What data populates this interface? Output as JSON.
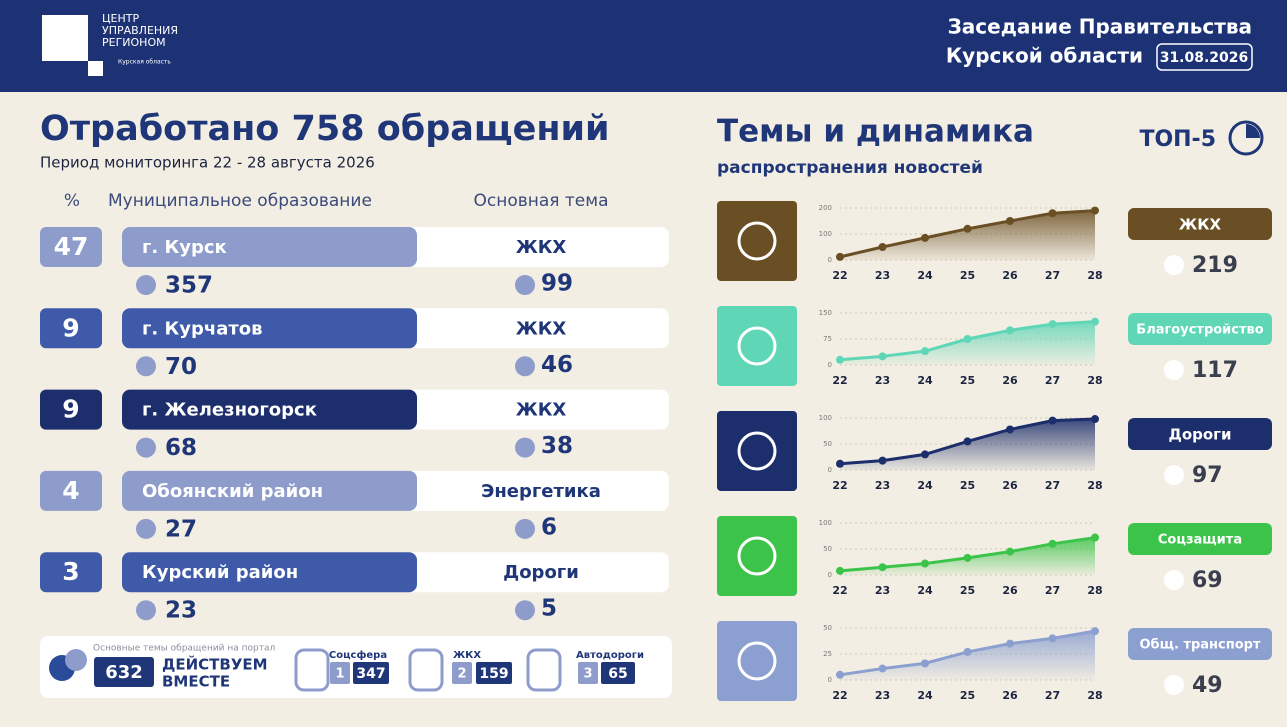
{
  "header": {
    "org": [
      "ЦЕНТР",
      "УПРАВЛЕНИЯ",
      "РЕГИОНОМ"
    ],
    "region": "Курская область",
    "title_lines": [
      "Заседание Правительства",
      "Курской области"
    ],
    "date": "31.08.2026"
  },
  "summary": {
    "title": "Отработано 758 обращений",
    "period": "Период мониторинга 22 - 28 августа 2026"
  },
  "table": {
    "columns": [
      "%",
      "Муниципальное образование",
      "Основная тема"
    ],
    "rows": [
      {
        "percent": 47,
        "name": "г. Курск",
        "count": 357,
        "topic": "ЖКХ",
        "topic_count": 99,
        "color": "#8e9ccc"
      },
      {
        "percent": 9,
        "name": "г. Курчатов",
        "count": 70,
        "topic": "ЖКХ",
        "topic_count": 46,
        "color": "#3f5aa8"
      },
      {
        "percent": 9,
        "name": "г. Железногорск",
        "count": 68,
        "topic": "ЖКХ",
        "topic_count": 38,
        "color": "#1c2e6b"
      },
      {
        "percent": 4,
        "name": "Обоянский район",
        "count": 27,
        "topic": "Энергетика",
        "topic_count": 6,
        "color": "#8e9ccc"
      },
      {
        "percent": 3,
        "name": "Курский район",
        "count": 23,
        "topic": "Дороги",
        "topic_count": 5,
        "color": "#3f5aa8"
      }
    ]
  },
  "portal": {
    "caption": "Основные темы обращений на портал",
    "total": 632,
    "brand": [
      "ДЕЙСТВУЕМ",
      "ВМЕСТЕ"
    ],
    "items": [
      {
        "name": "Соцсфера",
        "rank": 1,
        "count": 347
      },
      {
        "name": "ЖКХ",
        "rank": 2,
        "count": 159
      },
      {
        "name": "Автодороги",
        "rank": 3,
        "count": 65
      }
    ]
  },
  "dynamics": {
    "title": "Темы и динамика",
    "subtitle": "распространения новостей",
    "badge": "ТОП-5"
  },
  "chart_data": [
    {
      "type": "line",
      "name": "ЖКХ",
      "total": 219,
      "color": "#6b4f24",
      "categories": [
        "22",
        "23",
        "24",
        "25",
        "26",
        "27",
        "28"
      ],
      "values": [
        12,
        50,
        85,
        120,
        150,
        180,
        190
      ],
      "ylim": [
        0,
        200
      ],
      "yticks": [
        0,
        100,
        200
      ],
      "grid": true
    },
    {
      "type": "line",
      "name": "Благоустройство",
      "total": 117,
      "color": "#5fd6b6",
      "categories": [
        "22",
        "23",
        "24",
        "25",
        "26",
        "27",
        "28"
      ],
      "values": [
        15,
        25,
        40,
        75,
        100,
        118,
        125
      ],
      "ylim": [
        0,
        150
      ],
      "yticks": [
        0,
        75,
        150
      ],
      "grid": true
    },
    {
      "type": "line",
      "name": "Дороги",
      "total": 97,
      "color": "#1c2e6b",
      "categories": [
        "22",
        "23",
        "24",
        "25",
        "26",
        "27",
        "28"
      ],
      "values": [
        12,
        18,
        30,
        55,
        78,
        95,
        98
      ],
      "ylim": [
        0,
        100
      ],
      "yticks": [
        0,
        50,
        100
      ],
      "grid": true
    },
    {
      "type": "line",
      "name": "Соцзащита",
      "total": 69,
      "color": "#3cc44a",
      "categories": [
        "22",
        "23",
        "24",
        "25",
        "26",
        "27",
        "28"
      ],
      "values": [
        8,
        15,
        22,
        33,
        45,
        60,
        72
      ],
      "ylim": [
        0,
        100
      ],
      "yticks": [
        0,
        50,
        100
      ],
      "grid": true
    },
    {
      "type": "line",
      "name": "Общ. транспорт",
      "total": 49,
      "color": "#8b9fd0",
      "categories": [
        "22",
        "23",
        "24",
        "25",
        "26",
        "27",
        "28"
      ],
      "values": [
        5,
        11,
        16,
        27,
        35,
        40,
        47
      ],
      "ylim": [
        0,
        50
      ],
      "yticks": [
        0,
        25,
        50
      ],
      "grid": true
    }
  ]
}
